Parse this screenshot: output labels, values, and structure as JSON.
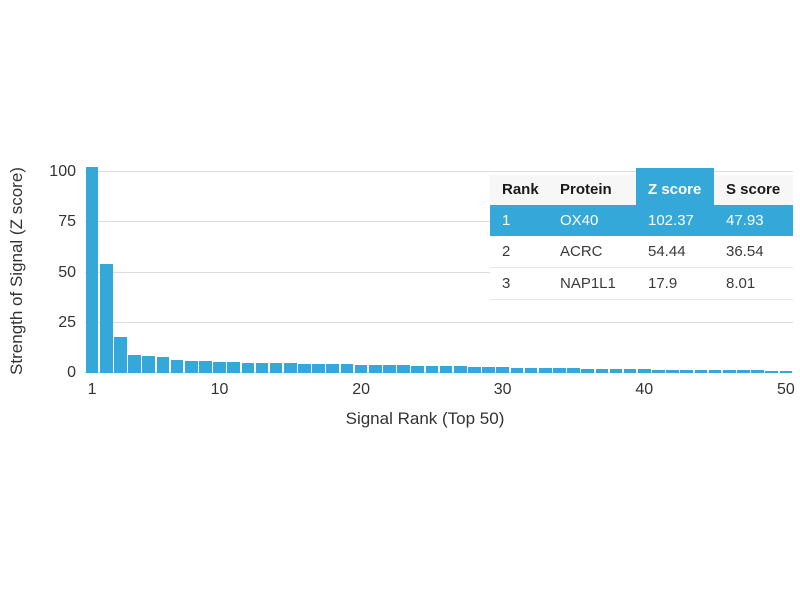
{
  "accent_color": "#34a8d8",
  "gridline_color": "#dcdcdc",
  "chart_data": {
    "type": "bar",
    "title": "",
    "xlabel": "Signal Rank (Top 50)",
    "ylabel": "Strength of Signal (Z score)",
    "x": [
      1,
      2,
      3,
      4,
      5,
      6,
      7,
      8,
      9,
      10,
      11,
      12,
      13,
      14,
      15,
      16,
      17,
      18,
      19,
      20,
      21,
      22,
      23,
      24,
      25,
      26,
      27,
      28,
      29,
      30,
      31,
      32,
      33,
      34,
      35,
      36,
      37,
      38,
      39,
      40,
      41,
      42,
      43,
      44,
      45,
      46,
      47,
      48,
      49,
      50
    ],
    "values": [
      102.37,
      54.44,
      17.9,
      9.0,
      8.4,
      7.9,
      6.5,
      6.1,
      5.8,
      5.6,
      5.4,
      5.2,
      5.1,
      5.0,
      4.8,
      4.7,
      4.6,
      4.5,
      4.4,
      4.2,
      4.1,
      4.0,
      3.9,
      3.7,
      3.6,
      3.4,
      3.3,
      3.1,
      3.0,
      2.8,
      2.7,
      2.6,
      2.5,
      2.4,
      2.3,
      2.2,
      2.1,
      2.0,
      1.9,
      1.8,
      1.7,
      1.7,
      1.6,
      1.5,
      1.5,
      1.4,
      1.3,
      1.3,
      1.2,
      1.2
    ],
    "ylim": [
      0,
      100
    ],
    "yticks": [
      0,
      25,
      50,
      75,
      100
    ],
    "xticks": [
      1,
      10,
      20,
      30,
      40,
      50
    ],
    "grid": true,
    "legend": null,
    "bar_color": "#34a8d8"
  },
  "table": {
    "columns": [
      "Rank",
      "Protein",
      "Z score",
      "S score"
    ],
    "highlight_column": "Z score",
    "rows": [
      {
        "rank": "1",
        "protein": "OX40",
        "z_score": "102.37",
        "s_score": "47.93"
      },
      {
        "rank": "2",
        "protein": "ACRC",
        "z_score": "54.44",
        "s_score": "36.54"
      },
      {
        "rank": "3",
        "protein": "NAP1L1",
        "z_score": "17.9",
        "s_score": "8.01"
      }
    ]
  }
}
